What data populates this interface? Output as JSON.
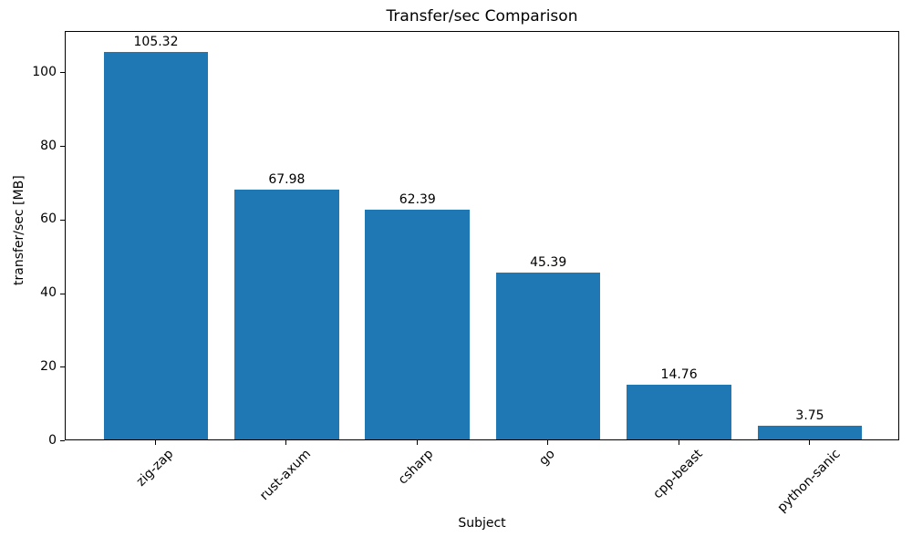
{
  "chart_data": {
    "type": "bar",
    "title": "Transfer/sec Comparison",
    "xlabel": "Subject",
    "ylabel": "transfer/sec [MB]",
    "categories": [
      "zig-zap",
      "rust-axum",
      "csharp",
      "go",
      "cpp-beast",
      "python-sanic"
    ],
    "values": [
      105.32,
      67.98,
      62.39,
      45.39,
      14.76,
      3.75
    ],
    "bar_labels": [
      "105.32",
      "67.98",
      "62.39",
      "45.39",
      "14.76",
      "3.75"
    ],
    "yticks": [
      0,
      20,
      40,
      60,
      80,
      100
    ],
    "ylim": [
      0,
      111.2
    ],
    "xtick_rotation": 45,
    "bar_color": "#1f77b4",
    "background_color": "#ffffff",
    "grid": false,
    "legend": false
  }
}
